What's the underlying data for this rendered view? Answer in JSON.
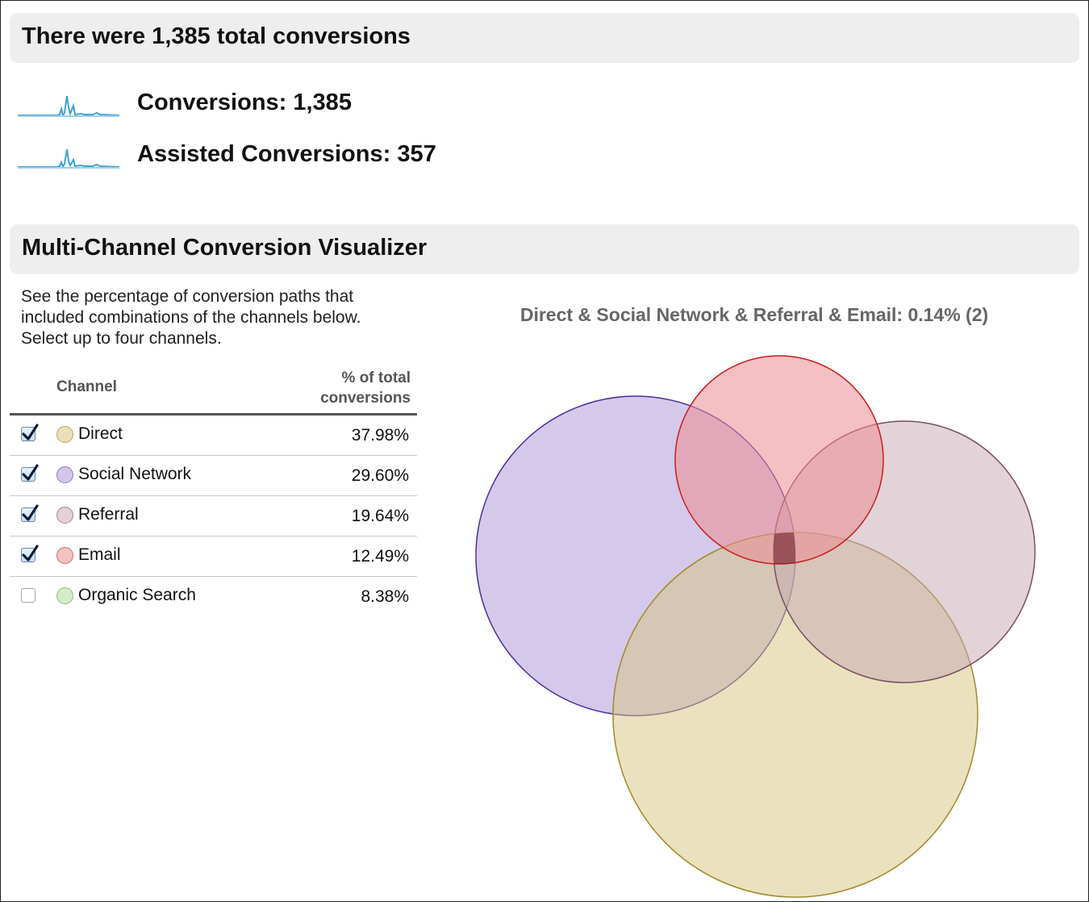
{
  "summary": {
    "title": "There were 1,385 total conversions",
    "metrics": [
      {
        "label": "Conversions: 1,385",
        "sparkline_icon": "sparkline-chart",
        "color": "#3ea3d6"
      },
      {
        "label": "Assisted Conversions: 357",
        "sparkline_icon": "sparkline-chart",
        "color": "#3ea3d6"
      }
    ]
  },
  "visualizer": {
    "title": "Multi-Channel Conversion Visualizer",
    "intro": "See the percentage of conversion paths that included combinations of the channels below. Select up to four channels.",
    "table": {
      "col_channel": "Channel",
      "col_pct_line1": "% of total",
      "col_pct_line2": "conversions",
      "rows": [
        {
          "name": "Direct",
          "pct": "37.98%",
          "checked": true,
          "color": "#e8dfb8",
          "border": "#b8a763"
        },
        {
          "name": "Social Network",
          "pct": "29.60%",
          "checked": true,
          "color": "#d3c6ea",
          "border": "#8d78bf"
        },
        {
          "name": "Referral",
          "pct": "19.64%",
          "checked": true,
          "color": "#e2d2d8",
          "border": "#a38592"
        },
        {
          "name": "Email",
          "pct": "12.49%",
          "checked": true,
          "color": "#f4c2c2",
          "border": "#d16a6a"
        },
        {
          "name": "Organic Search",
          "pct": "8.38%",
          "checked": false,
          "color": "#d5ebc9",
          "border": "#8cbf74"
        }
      ]
    },
    "venn_title": "Direct & Social Network & Referral & Email: 0.14% (2)"
  }
}
